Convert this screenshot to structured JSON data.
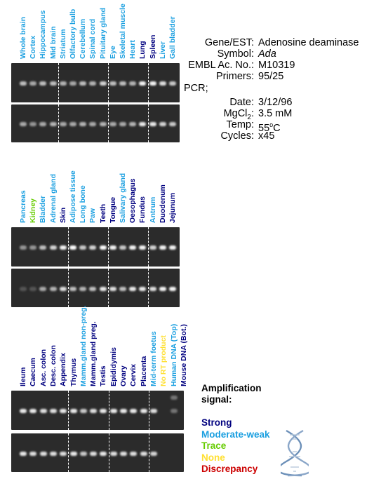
{
  "colors": {
    "strong": "#00007f",
    "moderate_weak": "#1a9fe0",
    "trace": "#66cc00",
    "none": "#ffe033",
    "discrepancy": "#cc0000",
    "gel": "#2b2b2b"
  },
  "panels": [
    {
      "lanes": [
        {
          "label": "Whole brain",
          "level": "moderate_weak",
          "top": 0.55,
          "bottom": 0.45
        },
        {
          "label": "Cortex",
          "level": "moderate_weak",
          "top": 0.45,
          "bottom": 0.35
        },
        {
          "label": "Hippocampus",
          "level": "moderate_weak",
          "top": 0.55,
          "bottom": 0.45
        },
        {
          "label": "Mid brain",
          "level": "moderate_weak",
          "top": 0.55,
          "bottom": 0.5
        },
        {
          "label": "Striatum",
          "level": "moderate_weak",
          "top": 0.5,
          "bottom": 0.45
        },
        {
          "label": "Olfactory bulb",
          "level": "moderate_weak",
          "top": 0.45,
          "bottom": 0.45
        },
        {
          "label": "Cerebellum",
          "level": "moderate_weak",
          "top": 0.55,
          "bottom": 0.5
        },
        {
          "label": "Spinal cord",
          "level": "moderate_weak",
          "top": 0.5,
          "bottom": 0.45
        },
        {
          "label": "Pituitary gland",
          "level": "moderate_weak",
          "top": 0.65,
          "bottom": 0.5
        },
        {
          "label": "Eye",
          "level": "moderate_weak",
          "top": 0.55,
          "bottom": 0.45
        },
        {
          "label": "Skeletal muscle",
          "level": "moderate_weak",
          "top": 0.55,
          "bottom": 0.45
        },
        {
          "label": "Heart",
          "level": "moderate_weak",
          "top": 0.5,
          "bottom": 0.5
        },
        {
          "label": "Lung",
          "level": "strong",
          "top": 0.8,
          "bottom": 0.75
        },
        {
          "label": "Spleen",
          "level": "strong",
          "top": 0.8,
          "bottom": 0.75
        },
        {
          "label": "Liver",
          "level": "moderate_weak",
          "top": 0.7,
          "bottom": 0.65
        },
        {
          "label": "Gall bladder",
          "level": "moderate_weak",
          "top": 0.6,
          "bottom": 0.6
        }
      ]
    },
    {
      "lanes": [
        {
          "label": "Pancreas",
          "level": "moderate_weak",
          "top": 0.35,
          "bottom": 0.05
        },
        {
          "label": "Kidney",
          "level": "trace",
          "top": 0.35,
          "bottom": 0.05
        },
        {
          "label": "Bladder",
          "level": "moderate_weak",
          "top": 0.55,
          "bottom": 0.45
        },
        {
          "label": "Adrenal gland",
          "level": "moderate_weak",
          "top": 0.65,
          "bottom": 0.5
        },
        {
          "label": "Skin",
          "level": "strong",
          "top": 0.8,
          "bottom": 0.7
        },
        {
          "label": "Adipose tissue",
          "level": "moderate_weak",
          "top": 0.85,
          "bottom": 0.55
        },
        {
          "label": "Long bone",
          "level": "moderate_weak",
          "top": 0.6,
          "bottom": 0.5
        },
        {
          "label": "Paw",
          "level": "moderate_weak",
          "top": 0.65,
          "bottom": 0.55
        },
        {
          "label": "Teeth",
          "level": "strong",
          "top": 0.85,
          "bottom": 0.75
        },
        {
          "label": "Tongue",
          "level": "strong",
          "top": 0.8,
          "bottom": 0.7
        },
        {
          "label": "Salivary gland",
          "level": "moderate_weak",
          "top": 0.6,
          "bottom": 0.55
        },
        {
          "label": "Oesophagus",
          "level": "strong",
          "top": 0.8,
          "bottom": 0.75
        },
        {
          "label": "Fundus",
          "level": "strong",
          "top": 0.8,
          "bottom": 0.75
        },
        {
          "label": "Antrum",
          "level": "moderate_weak",
          "top": 0.65,
          "bottom": 0.7
        },
        {
          "label": "Duodenum",
          "level": "strong",
          "top": 0.8,
          "bottom": 0.8
        },
        {
          "label": "Jejunum",
          "level": "strong",
          "top": 0.8,
          "bottom": 0.8
        }
      ]
    },
    {
      "lanes": [
        {
          "label": "Ileum",
          "level": "strong",
          "top": 0.75,
          "bottom": 0.75
        },
        {
          "label": "Caecum",
          "level": "strong",
          "top": 0.75,
          "bottom": 0.7
        },
        {
          "label": "Asc. colon",
          "level": "strong",
          "top": 0.7,
          "bottom": 0.7
        },
        {
          "label": "Desc. colon",
          "level": "strong",
          "top": 0.7,
          "bottom": 0.7
        },
        {
          "label": "Appendix",
          "level": "strong",
          "top": 0.75,
          "bottom": 0.7
        },
        {
          "label": "Thymus",
          "level": "strong",
          "top": 0.75,
          "bottom": 0.75
        },
        {
          "label": "Mamm.gland non-preg.",
          "level": "moderate_weak",
          "top": 0.6,
          "bottom": 0.6
        },
        {
          "label": "Mamm.gland preg.",
          "level": "strong",
          "top": 0.7,
          "bottom": 0.7
        },
        {
          "label": "Testis",
          "level": "strong",
          "top": 0.75,
          "bottom": 0.75
        },
        {
          "label": "Epididymis",
          "level": "strong",
          "top": 0.75,
          "bottom": 0.7
        },
        {
          "label": "Ovary",
          "level": "strong",
          "top": 0.75,
          "bottom": 0.7
        },
        {
          "label": "Cervix",
          "level": "strong",
          "top": 0.75,
          "bottom": 0.7
        },
        {
          "label": "Placenta",
          "level": "strong",
          "top": 0.75,
          "bottom": 0.7
        },
        {
          "label": "Mid-term foetus",
          "level": "moderate_weak",
          "top": 0.7,
          "bottom": 0.65
        },
        {
          "label": "No RT product",
          "level": "none",
          "top": 0.0,
          "bottom": 0.0
        },
        {
          "label": "Human DNA (Top)",
          "level": "moderate_weak",
          "top": 0.2,
          "bottom": 0.0
        },
        {
          "label": "Mouse DNA (Bot.)",
          "level": "strong",
          "top": 0.0,
          "bottom": 0.0
        }
      ]
    }
  ],
  "info": [
    {
      "key": "Gene/EST:",
      "value": "Adenosine deaminase",
      "italic": false
    },
    {
      "key": "Symbol:",
      "value": "Ada",
      "italic": true
    },
    {
      "key": "EMBL Ac. No.:",
      "value": "M10319",
      "italic": false
    },
    {
      "key": "Primers:",
      "value": "95/25",
      "italic": false
    }
  ],
  "pcr": {
    "label": "PCR;",
    "rows": [
      {
        "key": "Date:",
        "value": "3/12/96"
      },
      {
        "key": "MgCl2:",
        "value": "3.5 mM"
      },
      {
        "key": "Temp:",
        "value": "55oC"
      },
      {
        "key": "Cycles:",
        "value": "x45"
      }
    ]
  },
  "legend": {
    "title": "Amplification signal:",
    "items": [
      {
        "label": "Strong",
        "level": "strong"
      },
      {
        "label": "Moderate-weak",
        "level": "moderate_weak"
      },
      {
        "label": "Trace",
        "level": "trace"
      },
      {
        "label": "None",
        "level": "none"
      },
      {
        "label": "Discrepancy",
        "level": "discrepancy"
      }
    ]
  }
}
